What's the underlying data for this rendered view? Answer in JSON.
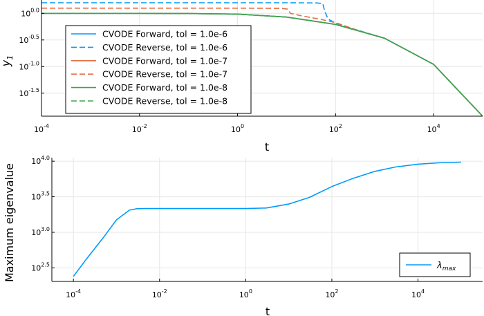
{
  "chart_data": [
    {
      "type": "line",
      "ylabel_base": "y",
      "ylabel_sub": "1",
      "xlabel": "t",
      "x_scale": "log10",
      "y_scale": "log10",
      "xlim": [
        0.0001,
        100000
      ],
      "ylim": [
        0.0117,
        1.78
      ],
      "x_ticks": [
        {
          "base": "10",
          "exp": "-4"
        },
        {
          "base": "10",
          "exp": "-2"
        },
        {
          "base": "10",
          "exp": "0"
        },
        {
          "base": "10",
          "exp": "2"
        },
        {
          "base": "10",
          "exp": "4"
        }
      ],
      "y_ticks": [
        {
          "base": "10",
          "exp": "0.0"
        },
        {
          "base": "10",
          "exp": "-0.5"
        },
        {
          "base": "10",
          "exp": "-1.0"
        },
        {
          "base": "10",
          "exp": "-1.5"
        }
      ],
      "legend_position": "bottom-left",
      "series": [
        {
          "name": "CVODE Forward, tol = 1.0e-6",
          "color": "#009af9",
          "dash": false,
          "x": [
            0.0001,
            0.001,
            0.01,
            0.1,
            1,
            10,
            100,
            1000,
            10000,
            100000
          ],
          "y": [
            1.0,
            1.0,
            0.998,
            0.991,
            0.966,
            0.85,
            0.62,
            0.34,
            0.11,
            0.0117
          ]
        },
        {
          "name": "CVODE Reverse, tol = 1.0e-6",
          "color": "#009af9",
          "dash": true,
          "x": [
            0.0001,
            0.01,
            1,
            10,
            40,
            55,
            60,
            70,
            100,
            200,
            1000,
            10000,
            100000
          ],
          "y": [
            1.58,
            1.58,
            1.58,
            1.58,
            1.57,
            1.52,
            1.1,
            0.78,
            0.66,
            0.53,
            0.34,
            0.11,
            0.0117
          ]
        },
        {
          "name": "CVODE Forward, tol = 1.0e-7",
          "color": "#e26f46",
          "dash": false,
          "x": [
            0.0001,
            0.001,
            0.01,
            0.1,
            1,
            10,
            100,
            1000,
            10000,
            100000
          ],
          "y": [
            1.0,
            1.0,
            0.998,
            0.991,
            0.966,
            0.85,
            0.62,
            0.34,
            0.11,
            0.0117
          ]
        },
        {
          "name": "CVODE Reverse, tol = 1.0e-7",
          "color": "#e26f46",
          "dash": true,
          "x": [
            0.0001,
            0.01,
            1,
            8,
            10.5,
            12,
            20,
            50,
            100,
            300,
            1000,
            10000,
            100000
          ],
          "y": [
            1.25,
            1.25,
            1.25,
            1.24,
            1.2,
            1.0,
            0.9,
            0.77,
            0.67,
            0.47,
            0.34,
            0.11,
            0.0117
          ]
        },
        {
          "name": "CVODE Forward, tol = 1.0e-8",
          "color": "#3da44d",
          "dash": false,
          "x": [
            0.0001,
            0.001,
            0.01,
            0.1,
            1,
            10,
            100,
            1000,
            10000,
            100000
          ],
          "y": [
            1.0,
            1.0,
            0.998,
            0.991,
            0.966,
            0.85,
            0.62,
            0.34,
            0.11,
            0.0117
          ]
        },
        {
          "name": "CVODE Reverse, tol = 1.0e-8",
          "color": "#3da44d",
          "dash": true,
          "x": [
            0.0001,
            0.001,
            0.01,
            0.1,
            1,
            10,
            100,
            1000,
            10000,
            100000
          ],
          "y": [
            1.0,
            1.0,
            0.998,
            0.991,
            0.966,
            0.85,
            0.62,
            0.34,
            0.11,
            0.0117
          ]
        }
      ]
    },
    {
      "type": "line",
      "ylabel": "Maximum eigenvalue",
      "xlabel": "t",
      "x_scale": "log10",
      "y_scale": "log10",
      "xlim": [
        3.16e-05,
        316228
      ],
      "ylim": [
        204,
        11220
      ],
      "x_ticks": [
        {
          "base": "10",
          "exp": "-4"
        },
        {
          "base": "10",
          "exp": "-2"
        },
        {
          "base": "10",
          "exp": "0"
        },
        {
          "base": "10",
          "exp": "2"
        },
        {
          "base": "10",
          "exp": "4"
        }
      ],
      "y_ticks": [
        {
          "base": "10",
          "exp": "2.5"
        },
        {
          "base": "10",
          "exp": "3.0"
        },
        {
          "base": "10",
          "exp": "3.5"
        },
        {
          "base": "10",
          "exp": "4.0"
        }
      ],
      "legend_position": "bottom-right",
      "series": [
        {
          "name_base": "λ",
          "name_sub": "max",
          "color": "#009af9",
          "dash": false,
          "x": [
            0.0001,
            0.0002,
            0.0005,
            0.001,
            0.002,
            0.003,
            0.005,
            0.01,
            0.1,
            1,
            3,
            10,
            30,
            100,
            300,
            1000,
            3000,
            10000,
            30000,
            100000
          ],
          "y": [
            240,
            420,
            850,
            1500,
            2050,
            2150,
            2160,
            2160,
            2160,
            2160,
            2200,
            2500,
            3100,
            4400,
            5700,
            7200,
            8300,
            9100,
            9500,
            9700
          ]
        }
      ]
    }
  ]
}
